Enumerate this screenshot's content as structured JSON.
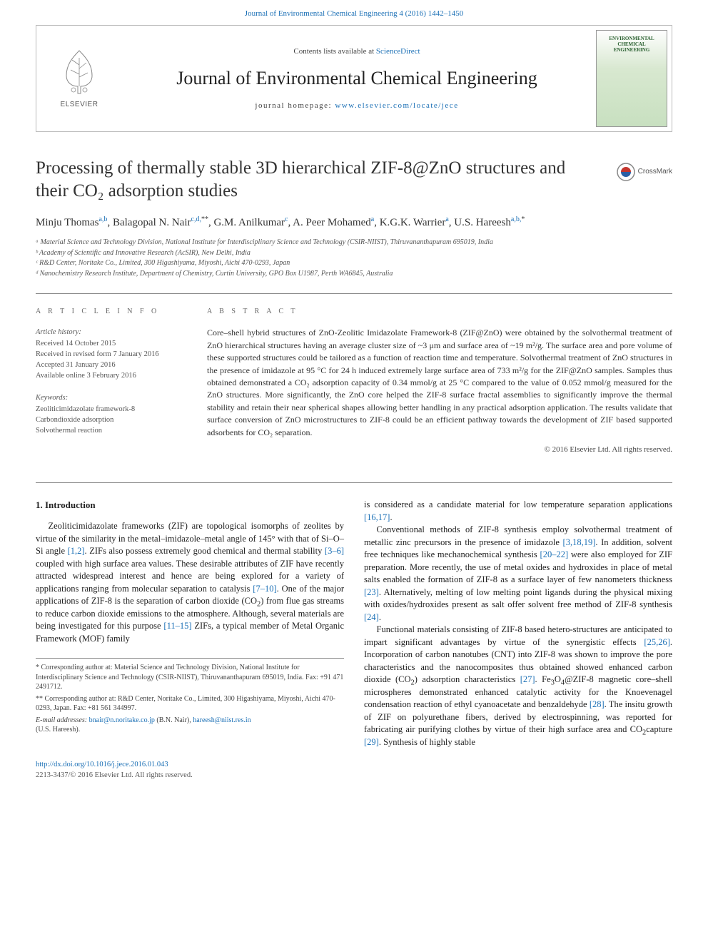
{
  "top_citation": "Journal of Environmental Chemical Engineering 4 (2016) 1442–1450",
  "header": {
    "contents_prefix": "Contents lists available at ",
    "contents_link": "ScienceDirect",
    "journal_name": "Journal of Environmental Chemical Engineering",
    "homepage_prefix": "journal homepage: ",
    "homepage_link": "www.elsevier.com/locate/jece",
    "publisher": "ELSEVIER",
    "cover_text": "ENVIRONMENTAL CHEMICAL ENGINEERING"
  },
  "crossmark": "CrossMark",
  "title": "Processing of thermally stable 3D hierarchical ZIF-8@ZnO structures and their CO₂ adsorption studies",
  "authors_html": "Minju Thomas<sup>a,b</sup>, Balagopal N. Nair<sup>c,d,</sup><sup class='star'>**</sup>, G.M. Anilkumar<sup>c</sup>, A. Peer Mohamed<sup>a</sup>, K.G.K. Warrier<sup>a</sup>, U.S. Hareesh<sup>a,b,</sup><sup class='star'>*</sup>",
  "affiliations": [
    "ᵃ Material Science and Technology Division, National Institute for Interdisciplinary Science and Technology (CSIR-NIIST), Thiruvananthapuram 695019, India",
    "ᵇ Academy of Scientific and Innovative Research (AcSIR), New Delhi, India",
    "ᶜ R&D Center, Noritake Co., Limited, 300 Higashiyama, Miyoshi, Aichi 470-0293, Japan",
    "ᵈ Nanochemistry Research Institute, Department of Chemistry, Curtin University, GPO Box U1987, Perth WA6845, Australia"
  ],
  "article_info": {
    "heading": "A R T I C L E   I N F O",
    "history_label": "Article history:",
    "history": [
      "Received 14 October 2015",
      "Received in revised form 7 January 2016",
      "Accepted 31 January 2016",
      "Available online 3 February 2016"
    ],
    "keywords_label": "Keywords:",
    "keywords": [
      "Zeoliticimidazolate framework-8",
      "Carbondioxide adsorption",
      "Solvothermal reaction"
    ]
  },
  "abstract": {
    "heading": "A B S T R A C T",
    "text": "Core–shell hybrid structures of ZnO-Zeolitic Imidazolate Framework-8 (ZIF@ZnO) were obtained by the solvothermal treatment of ZnO hierarchical structures having an average cluster size of ~3 μm and surface area of ~19 m²/g. The surface area and pore volume of these supported structures could be tailored as a function of reaction time and temperature. Solvothermal treatment of ZnO structures in the presence of imidazole at 95 °C for 24 h induced extremely large surface area of 733 m²/g for the ZIF@ZnO samples. Samples thus obtained demonstrated a CO₂ adsorption capacity of 0.34 mmol/g at 25 °C compared to the value of 0.052 mmol/g measured for the ZnO structures. More significantly, the ZnO core helped the ZIF-8 surface fractal assemblies to significantly improve the thermal stability and retain their near spherical shapes allowing better handling in any practical adsorption application. The results validate that surface conversion of ZnO microstructures to ZIF-8 could be an efficient pathway towards the development of ZIF based supported adsorbents for CO₂ separation.",
    "copyright": "© 2016 Elsevier Ltd. All rights reserved."
  },
  "section1_heading": "1. Introduction",
  "footnotes": {
    "corr1": "* Corresponding author at: Material Science and Technology Division, National Institute for Interdisciplinary Science and Technology (CSIR-NIIST), Thiruvananthapuram 695019, India. Fax: +91 471 2491712.",
    "corr2": "** Corresponding author at: R&D Center, Noritake Co., Limited, 300 Higashiyama, Miyoshi, Aichi 470-0293, Japan. Fax: +81 561 344997.",
    "email_label": "E-mail addresses: ",
    "email1": "bnair@n.noritake.co.jp",
    "email1_name": " (B.N. Nair), ",
    "email2": "hareesh@niist.res.in",
    "email2_name": " (U.S. Hareesh)."
  },
  "doi": {
    "link": "http://dx.doi.org/10.1016/j.jece.2016.01.043",
    "issn": "2213-3437/© 2016 Elsevier Ltd. All rights reserved."
  },
  "colors": {
    "link": "#1a6fb5",
    "text": "#222222",
    "muted": "#555555",
    "border": "#888888"
  }
}
